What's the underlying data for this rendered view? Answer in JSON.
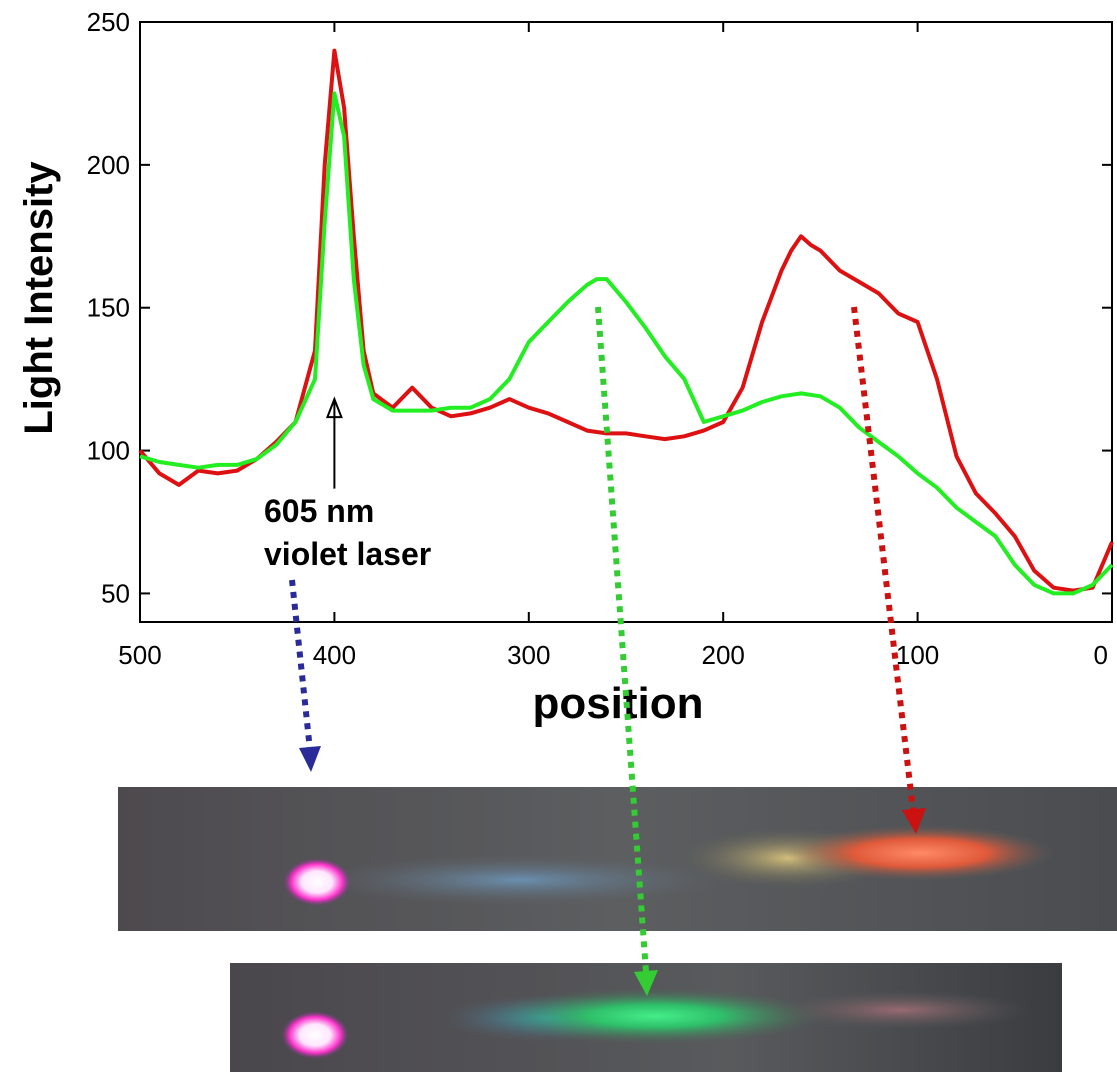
{
  "chart_data": {
    "type": "line",
    "xlabel": "position",
    "ylabel": "Light Intensity",
    "xlim": [
      500,
      0
    ],
    "ylim": [
      40,
      250
    ],
    "x_reversed": true,
    "x_ticks": [
      500,
      400,
      300,
      200,
      100,
      0
    ],
    "y_ticks": [
      50,
      100,
      150,
      200,
      250
    ],
    "grid": false,
    "annotations": [
      {
        "label_line1": "605 nm",
        "label_line2": "violet laser",
        "x": 400,
        "y": 118,
        "arrow_from_y": 100
      }
    ],
    "series": [
      {
        "color": "#dd1111",
        "x": [
          500,
          490,
          480,
          470,
          460,
          450,
          440,
          430,
          420,
          410,
          405,
          400,
          395,
          390,
          385,
          380,
          370,
          360,
          350,
          340,
          330,
          320,
          310,
          300,
          290,
          280,
          270,
          260,
          250,
          240,
          230,
          220,
          210,
          200,
          190,
          180,
          170,
          165,
          160,
          155,
          150,
          140,
          130,
          120,
          110,
          100,
          90,
          80,
          70,
          60,
          50,
          40,
          30,
          20,
          10,
          5,
          0
        ],
        "y": [
          100,
          92,
          88,
          93,
          92,
          93,
          97,
          103,
          110,
          135,
          200,
          240,
          220,
          175,
          135,
          120,
          115,
          122,
          115,
          112,
          113,
          115,
          118,
          115,
          113,
          110,
          107,
          106,
          106,
          105,
          104,
          105,
          107,
          110,
          122,
          145,
          163,
          170,
          175,
          172,
          170,
          163,
          159,
          155,
          148,
          145,
          125,
          98,
          85,
          78,
          70,
          58,
          52,
          51,
          52,
          60,
          68
        ]
      },
      {
        "color": "#22ee22",
        "x": [
          500,
          490,
          480,
          470,
          460,
          450,
          440,
          430,
          420,
          410,
          405,
          400,
          395,
          390,
          385,
          380,
          370,
          360,
          350,
          340,
          330,
          320,
          310,
          300,
          290,
          280,
          270,
          265,
          260,
          250,
          240,
          230,
          220,
          210,
          200,
          190,
          180,
          170,
          160,
          150,
          140,
          130,
          120,
          110,
          100,
          90,
          80,
          70,
          60,
          50,
          40,
          30,
          20,
          10,
          0
        ],
        "y": [
          98,
          96,
          95,
          94,
          95,
          95,
          97,
          102,
          110,
          125,
          180,
          225,
          210,
          160,
          130,
          118,
          114,
          114,
          114,
          115,
          115,
          118,
          125,
          138,
          145,
          152,
          158,
          160,
          160,
          152,
          143,
          133,
          125,
          110,
          112,
          114,
          117,
          119,
          120,
          119,
          115,
          108,
          103,
          98,
          92,
          87,
          80,
          75,
          70,
          60,
          53,
          50,
          50,
          53,
          60
        ]
      }
    ]
  },
  "photos": [
    {
      "name": "spectrum-photo-red",
      "color_band": "red-orange"
    },
    {
      "name": "spectrum-photo-green",
      "color_band": "green"
    }
  ],
  "pointer_arrows": [
    {
      "name": "blue-dotted-arrow",
      "color": "#2a2a99"
    },
    {
      "name": "green-dotted-arrow",
      "color": "#33cc33"
    },
    {
      "name": "red-dotted-arrow",
      "color": "#cc1111"
    }
  ]
}
